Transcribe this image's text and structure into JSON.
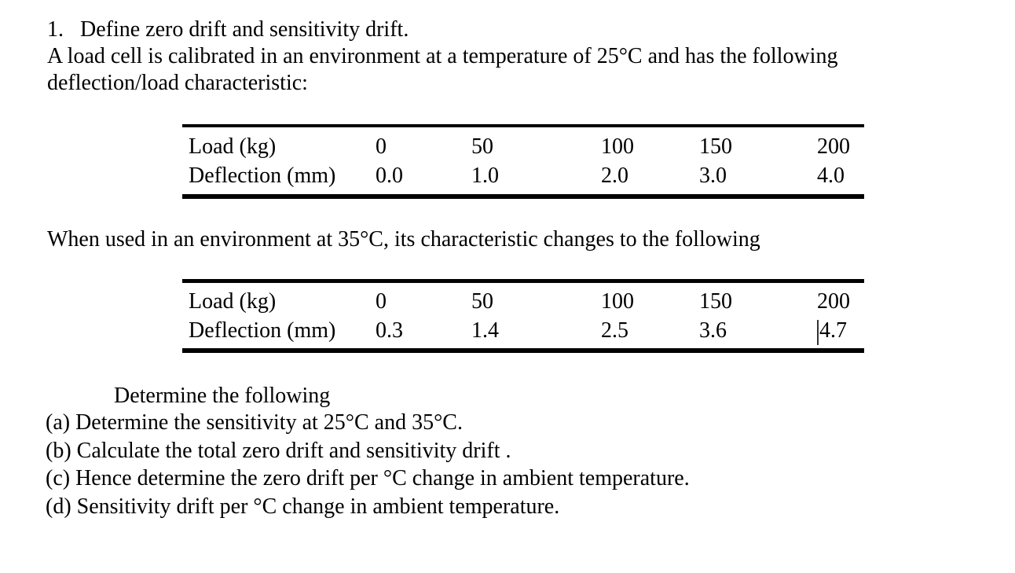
{
  "intro": {
    "item_number": "1.",
    "line1": "Define zero drift and sensitivity drift.",
    "line2": "A load cell is calibrated in an environment at a temperature of 25°C and has the following",
    "line3": "deflection/load characteristic:"
  },
  "table1": {
    "rows": [
      {
        "label": "Load (kg)",
        "values": [
          "0",
          "50",
          "100",
          "150",
          "200"
        ]
      },
      {
        "label": "Deflection (mm)",
        "values": [
          "0.0",
          "1.0",
          "2.0",
          "3.0",
          "4.0"
        ]
      }
    ]
  },
  "middle_text": "When used in an environment at 35°C, its characteristic changes to the following",
  "table2": {
    "rows": [
      {
        "label": "Load (kg)",
        "values": [
          "0",
          "50",
          "100",
          "150",
          "200"
        ]
      },
      {
        "label": "Deflection (mm)",
        "values": [
          "0.3",
          "1.4",
          "2.5",
          "3.6",
          "4.7"
        ]
      }
    ]
  },
  "tasks": {
    "heading": "Determine the following",
    "items": [
      {
        "label": "(a)",
        "text": "Determine the sensitivity at 25°C and 35°C."
      },
      {
        "label": "(b)",
        "text": "Calculate the total zero drift and sensitivity drift ."
      },
      {
        "label": "(c)",
        "text": "Hence determine the zero drift per °C change in ambient temperature."
      },
      {
        "label": "(d)",
        "text": "Sensitivity drift per °C change in ambient temperature."
      }
    ]
  }
}
